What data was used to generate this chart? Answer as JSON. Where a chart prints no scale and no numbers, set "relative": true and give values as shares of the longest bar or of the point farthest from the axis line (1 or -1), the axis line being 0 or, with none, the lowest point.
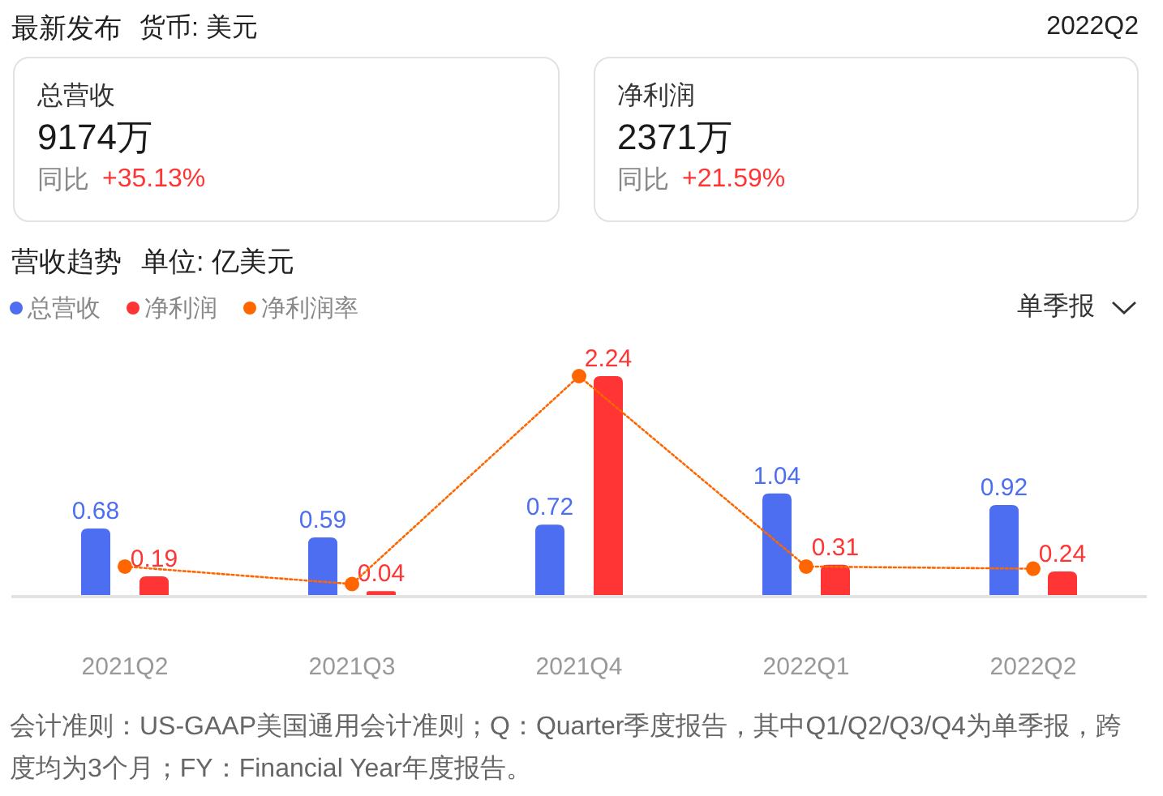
{
  "chart_data": [
    {
      "type": "other",
      "title": "最新发布",
      "subtitle": "货币: 美元",
      "annotations": [
        "2022Q2",
        "总营收",
        "9174万",
        "同比",
        "+35.13%",
        "净利润",
        "2371万",
        "同比",
        "+21.59%"
      ]
    },
    {
      "type": "bar",
      "title": "营收趋势",
      "subtitle": "单位: 亿美元",
      "categories": [
        "2021Q2",
        "2021Q3",
        "2021Q4",
        "2022Q1",
        "2022Q2"
      ],
      "series": [
        {
          "name": "总营收",
          "color": "#4e6ef2",
          "values": [
            0.68,
            0.59,
            0.72,
            1.04,
            0.92
          ],
          "value_labels": [
            "0.68",
            "0.59",
            "0.72",
            "1.04",
            "0.92"
          ]
        },
        {
          "name": "净利润",
          "color": "#ff3535",
          "values": [
            0.19,
            0.04,
            2.24,
            0.31,
            0.24
          ],
          "value_labels": [
            "0.19",
            "0.04",
            "2.24",
            "0.31",
            "0.24"
          ]
        }
      ],
      "legend": "top left",
      "tick_labels": "x",
      "annotations": [
        "单季报",
        "会计准则：US-GAAP美国通用会计准则；Q：Quarter季度报告，其中Q1/Q2/Q3/Q4为单季报，跨度均为3个月；FY：Financial Year年度报告。"
      ]
    },
    {
      "type": "line",
      "relative": true,
      "categories": [
        null,
        null,
        null,
        null,
        null
      ],
      "series": [
        {
          "name": "净利润率",
          "color": "#ff6600",
          "values": [
            0.13,
            0.05,
            1,
            0.13,
            0.12
          ]
        }
      ],
      "legend": "top left",
      "marker": "circle",
      "line_style": "dotted",
      "tick_labels": false
    }
  ]
}
